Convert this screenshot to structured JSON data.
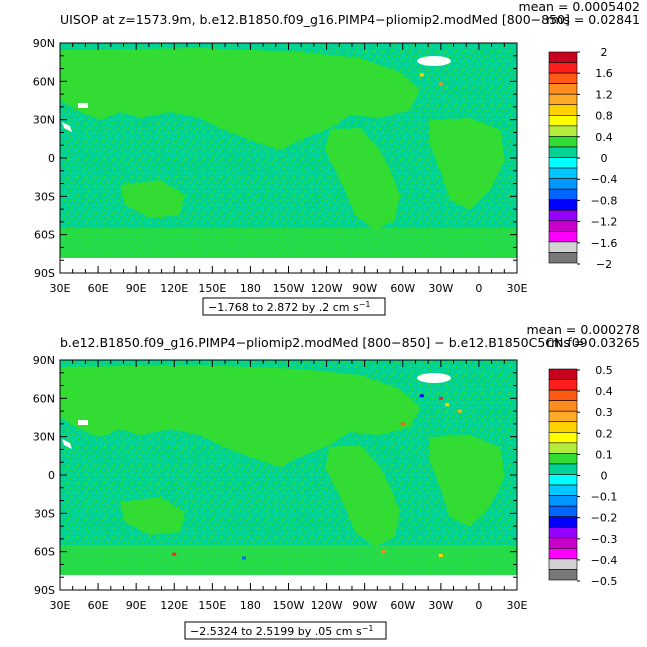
{
  "chart_data": [
    {
      "type": "heatmap",
      "title": "UISOP at z=1573.9m, b.e12.B1850.f09_g16.PIMP4−pliomip2.modMed [800−850]",
      "stats": {
        "mean": "mean = 0.0005402",
        "rms": "rms = 0.02841"
      },
      "range_label": "−1.768 to 2.872 by .2 cm s",
      "range_units_exp": "−1",
      "x_ticks": [
        "30E",
        "60E",
        "90E",
        "120E",
        "150E",
        "180",
        "150W",
        "120W",
        "90W",
        "60W",
        "30W",
        "0",
        "30E"
      ],
      "y_ticks": [
        "90N",
        "60N",
        "30N",
        "0",
        "30S",
        "60S",
        "90S"
      ],
      "colorbar": {
        "labels": [
          "2",
          "1.6",
          "1.2",
          "0.8",
          "0.4",
          "0",
          "−0.4",
          "−0.8",
          "−1.2",
          "−1.6",
          "−2"
        ],
        "colors": [
          "#C8001E",
          "#FF1E1E",
          "#FF5A14",
          "#FF8C1E",
          "#FFAA28",
          "#FFD200",
          "#FFFF00",
          "#B4EB3C",
          "#32DC32",
          "#00D296",
          "#00FFFF",
          "#00C8FF",
          "#0096FF",
          "#0064FF",
          "#0000FF",
          "#9600FF",
          "#C800C8",
          "#FF00FF",
          "#D2D2D2",
          "#787878"
        ]
      },
      "field": {
        "dominant": "#00D296",
        "secondary": "#32DC32",
        "land_ocean_mask": "#FFFFFF"
      },
      "hotspots": [
        {
          "lon": -45,
          "lat": 65,
          "color": "#FFD200"
        },
        {
          "lon": -30,
          "lat": 58,
          "color": "#FF8C1E"
        }
      ]
    },
    {
      "type": "heatmap",
      "title": "b.e12.B1850.f09_g16.PIMP4−pliomip2.modMed [800−850] − b.e12.B1850C5CN.f09",
      "stats": {
        "mean": "mean = 0.000278",
        "rms": "rms = 0.03265"
      },
      "range_label": "−2.5324 to 2.5199 by .05 cm s",
      "range_units_exp": "−1",
      "x_ticks": [
        "30E",
        "60E",
        "90E",
        "120E",
        "150E",
        "180",
        "150W",
        "120W",
        "90W",
        "60W",
        "30W",
        "0",
        "30E"
      ],
      "y_ticks": [
        "90N",
        "60N",
        "30N",
        "0",
        "30S",
        "60S",
        "90S"
      ],
      "colorbar": {
        "labels": [
          "0.5",
          "0.4",
          "0.3",
          "0.2",
          "0.1",
          "0",
          "−0.1",
          "−0.2",
          "−0.3",
          "−0.4",
          "−0.5"
        ],
        "colors": [
          "#C8001E",
          "#FF1E1E",
          "#FF5A14",
          "#FF8C1E",
          "#FFAA28",
          "#FFD200",
          "#FFFF00",
          "#B4EB3C",
          "#32DC32",
          "#00D296",
          "#00FFFF",
          "#00C8FF",
          "#0096FF",
          "#0064FF",
          "#0000FF",
          "#9600FF",
          "#C800C8",
          "#FF00FF",
          "#D2D2D2",
          "#787878"
        ]
      },
      "field": {
        "dominant": "#00D296",
        "secondary": "#32DC32",
        "land_ocean_mask": "#FFFFFF"
      },
      "hotspots": [
        {
          "lon": -45,
          "lat": 62,
          "color": "#0000FF"
        },
        {
          "lon": -30,
          "lat": 60,
          "color": "#FF1E1E"
        },
        {
          "lon": -25,
          "lat": 55,
          "color": "#FFD200"
        },
        {
          "lon": -60,
          "lat": 40,
          "color": "#FF5A14"
        },
        {
          "lon": -15,
          "lat": 50,
          "color": "#FFAA28"
        },
        {
          "lon": 175,
          "lat": -65,
          "color": "#0064FF"
        },
        {
          "lon": -75,
          "lat": -60,
          "color": "#FF8C1E"
        },
        {
          "lon": -30,
          "lat": -63,
          "color": "#FFD200"
        },
        {
          "lon": 120,
          "lat": -62,
          "color": "#FF1E1E"
        }
      ]
    }
  ]
}
